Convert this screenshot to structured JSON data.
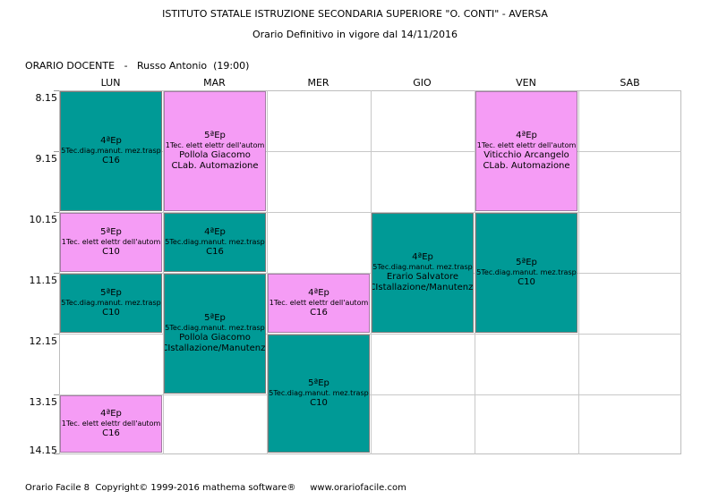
{
  "header": {
    "school": "ISTITUTO STATALE ISTRUZIONE SECONDARIA SUPERIORE \"O. CONTI\" - AVERSA",
    "subtitle": "Orario Definitivo in vigore dal 14/11/2016",
    "teacher": "ORARIO DOCENTE   -   Russo Antonio  (19:00)"
  },
  "days": [
    "LUN",
    "MAR",
    "MER",
    "GIO",
    "VEN",
    "SAB"
  ],
  "times": [
    "8.15",
    "9.15",
    "10.15",
    "11.15",
    "12.15",
    "13.15",
    "14.15"
  ],
  "colors": {
    "theory": "#009a96",
    "lab": "#f59cf5"
  },
  "lessons": [
    {
      "day": 0,
      "start": 0,
      "span": 2,
      "type": "theory",
      "class": "4ªEp",
      "subject": "5Tec.diag.manut. mez.trasp",
      "teacher": "",
      "room": "C16"
    },
    {
      "day": 1,
      "start": 0,
      "span": 2,
      "type": "lab",
      "class": "5ªEp",
      "subject": "1Tec. elett elettr dell'autom",
      "teacher": "Pollola Giacomo",
      "room": "CLab. Automazione"
    },
    {
      "day": 4,
      "start": 0,
      "span": 2,
      "type": "lab",
      "class": "4ªEp",
      "subject": "1Tec. elett elettr dell'autom",
      "teacher": "Viticchio Arcangelo",
      "room": "CLab. Automazione"
    },
    {
      "day": 0,
      "start": 2,
      "span": 1,
      "type": "lab",
      "class": "5ªEp",
      "subject": "1Tec. elett elettr dell'autom",
      "teacher": "",
      "room": "C10"
    },
    {
      "day": 1,
      "start": 2,
      "span": 1,
      "type": "theory",
      "class": "4ªEp",
      "subject": "5Tec.diag.manut. mez.trasp",
      "teacher": "",
      "room": "C16"
    },
    {
      "day": 3,
      "start": 2,
      "span": 2,
      "type": "theory",
      "class": "4ªEp",
      "subject": "5Tec.diag.manut. mez.trasp",
      "teacher": "Erario Salvatore",
      "room": "CIstallazione/Manutenz."
    },
    {
      "day": 4,
      "start": 2,
      "span": 2,
      "type": "theory",
      "class": "5ªEp",
      "subject": "5Tec.diag.manut. mez.trasp",
      "teacher": "",
      "room": "C10"
    },
    {
      "day": 0,
      "start": 3,
      "span": 1,
      "type": "theory",
      "class": "5ªEp",
      "subject": "5Tec.diag.manut. mez.trasp",
      "teacher": "",
      "room": "C10"
    },
    {
      "day": 1,
      "start": 3,
      "span": 2,
      "type": "theory",
      "class": "5ªEp",
      "subject": "5Tec.diag.manut. mez.trasp",
      "teacher": "Pollola Giacomo",
      "room": "CIstallazione/Manutenz."
    },
    {
      "day": 2,
      "start": 3,
      "span": 1,
      "type": "lab",
      "class": "4ªEp",
      "subject": "1Tec. elett elettr dell'autom",
      "teacher": "",
      "room": "C16"
    },
    {
      "day": 2,
      "start": 4,
      "span": 2,
      "type": "theory",
      "class": "5ªEp",
      "subject": "5Tec.diag.manut. mez.trasp",
      "teacher": "",
      "room": "C10"
    },
    {
      "day": 0,
      "start": 5,
      "span": 1,
      "type": "lab",
      "class": "4ªEp",
      "subject": "1Tec. elett elettr dell'autom",
      "teacher": "",
      "room": "C16"
    }
  ],
  "footer": "Orario Facile 8  Copyright© 1999-2016 mathema software®     www.orariofacile.com"
}
